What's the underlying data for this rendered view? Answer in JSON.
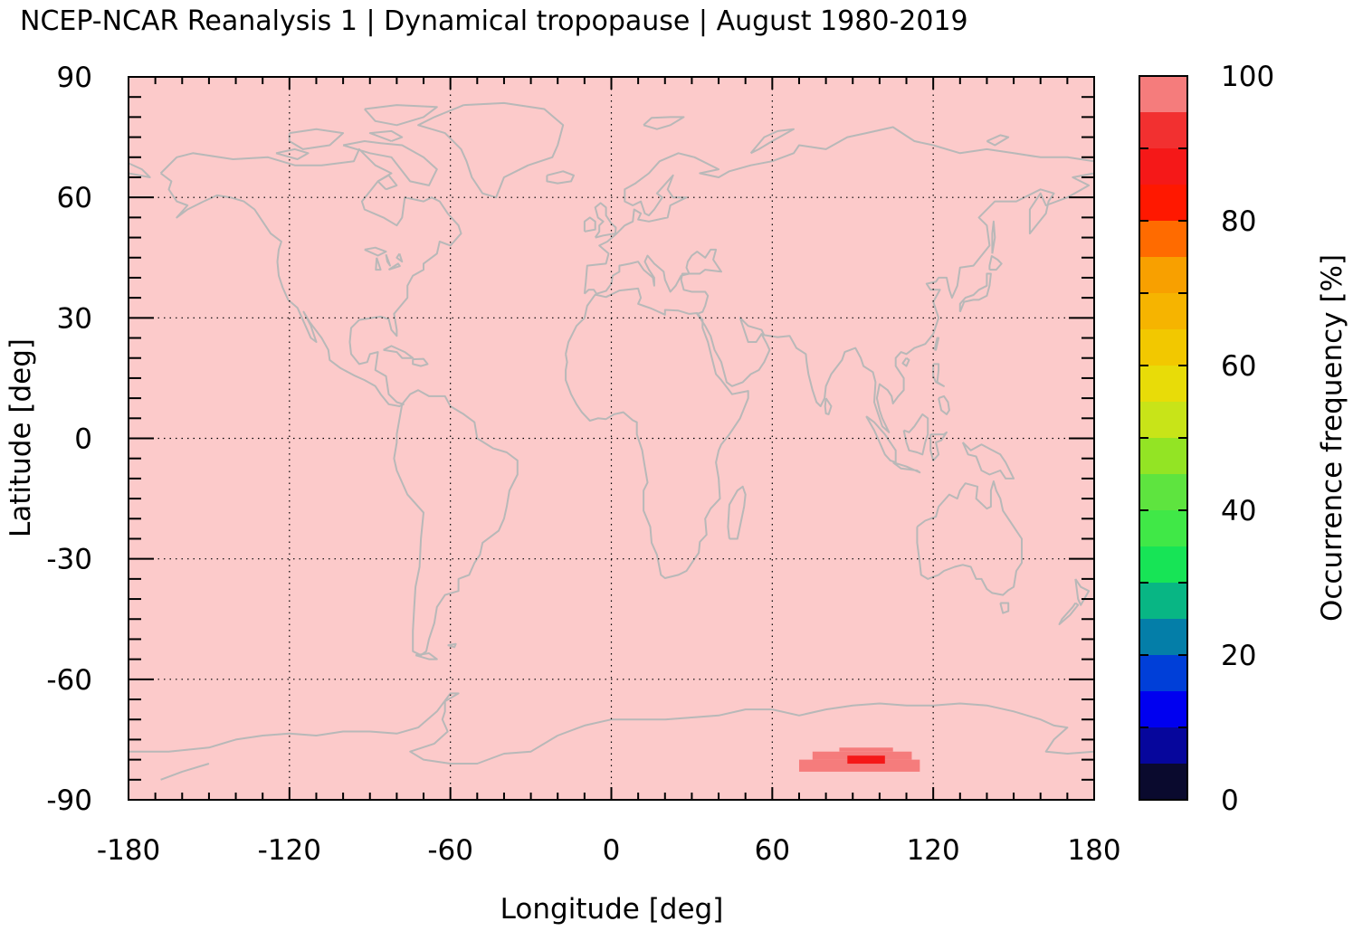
{
  "chart_data": {
    "type": "heatmap",
    "title": "NCEP-NCAR Reanalysis 1 | Dynamical tropopause | August 1980-2019",
    "xlabel": "Longitude [deg]",
    "ylabel": "Latitude [deg]",
    "xlim": [
      -180,
      180
    ],
    "ylim": [
      -90,
      90
    ],
    "xticks": [
      "-180",
      "-120",
      "-60",
      "0",
      "60",
      "120",
      "180"
    ],
    "yticks": [
      "90",
      "60",
      "30",
      "0",
      "-30",
      "-60",
      "-90"
    ],
    "grid": true,
    "background_value": 100,
    "colorbar": {
      "label": "Occurrence frequency [%]",
      "ticks": [
        "0",
        "20",
        "40",
        "60",
        "80",
        "100"
      ],
      "range": [
        0,
        100
      ],
      "step": 5,
      "colors": [
        "#0a0a2e",
        "#06069c",
        "#0000f0",
        "#003fd8",
        "#047ea8",
        "#08b684",
        "#17e456",
        "#40e847",
        "#5ee43f",
        "#93e424",
        "#c8e418",
        "#e8dc08",
        "#f2c800",
        "#f6b400",
        "#f8a000",
        "#ff6b00",
        "#ff1800",
        "#f51818",
        "#f23030",
        "#f57c7c",
        "#fccaca"
      ]
    },
    "cells": [
      {
        "lon": [
          70,
          115
        ],
        "lat": [
          -83,
          -80
        ],
        "value": 97
      },
      {
        "lon": [
          75,
          112
        ],
        "lat": [
          -80,
          -78
        ],
        "value": 97
      },
      {
        "lon": [
          85,
          105
        ],
        "lat": [
          -78,
          -77
        ],
        "value": 97
      },
      {
        "lon": [
          88,
          102
        ],
        "lat": [
          -81,
          -79
        ],
        "value": 87
      }
    ],
    "coastline_color": "#b8b8b8"
  }
}
